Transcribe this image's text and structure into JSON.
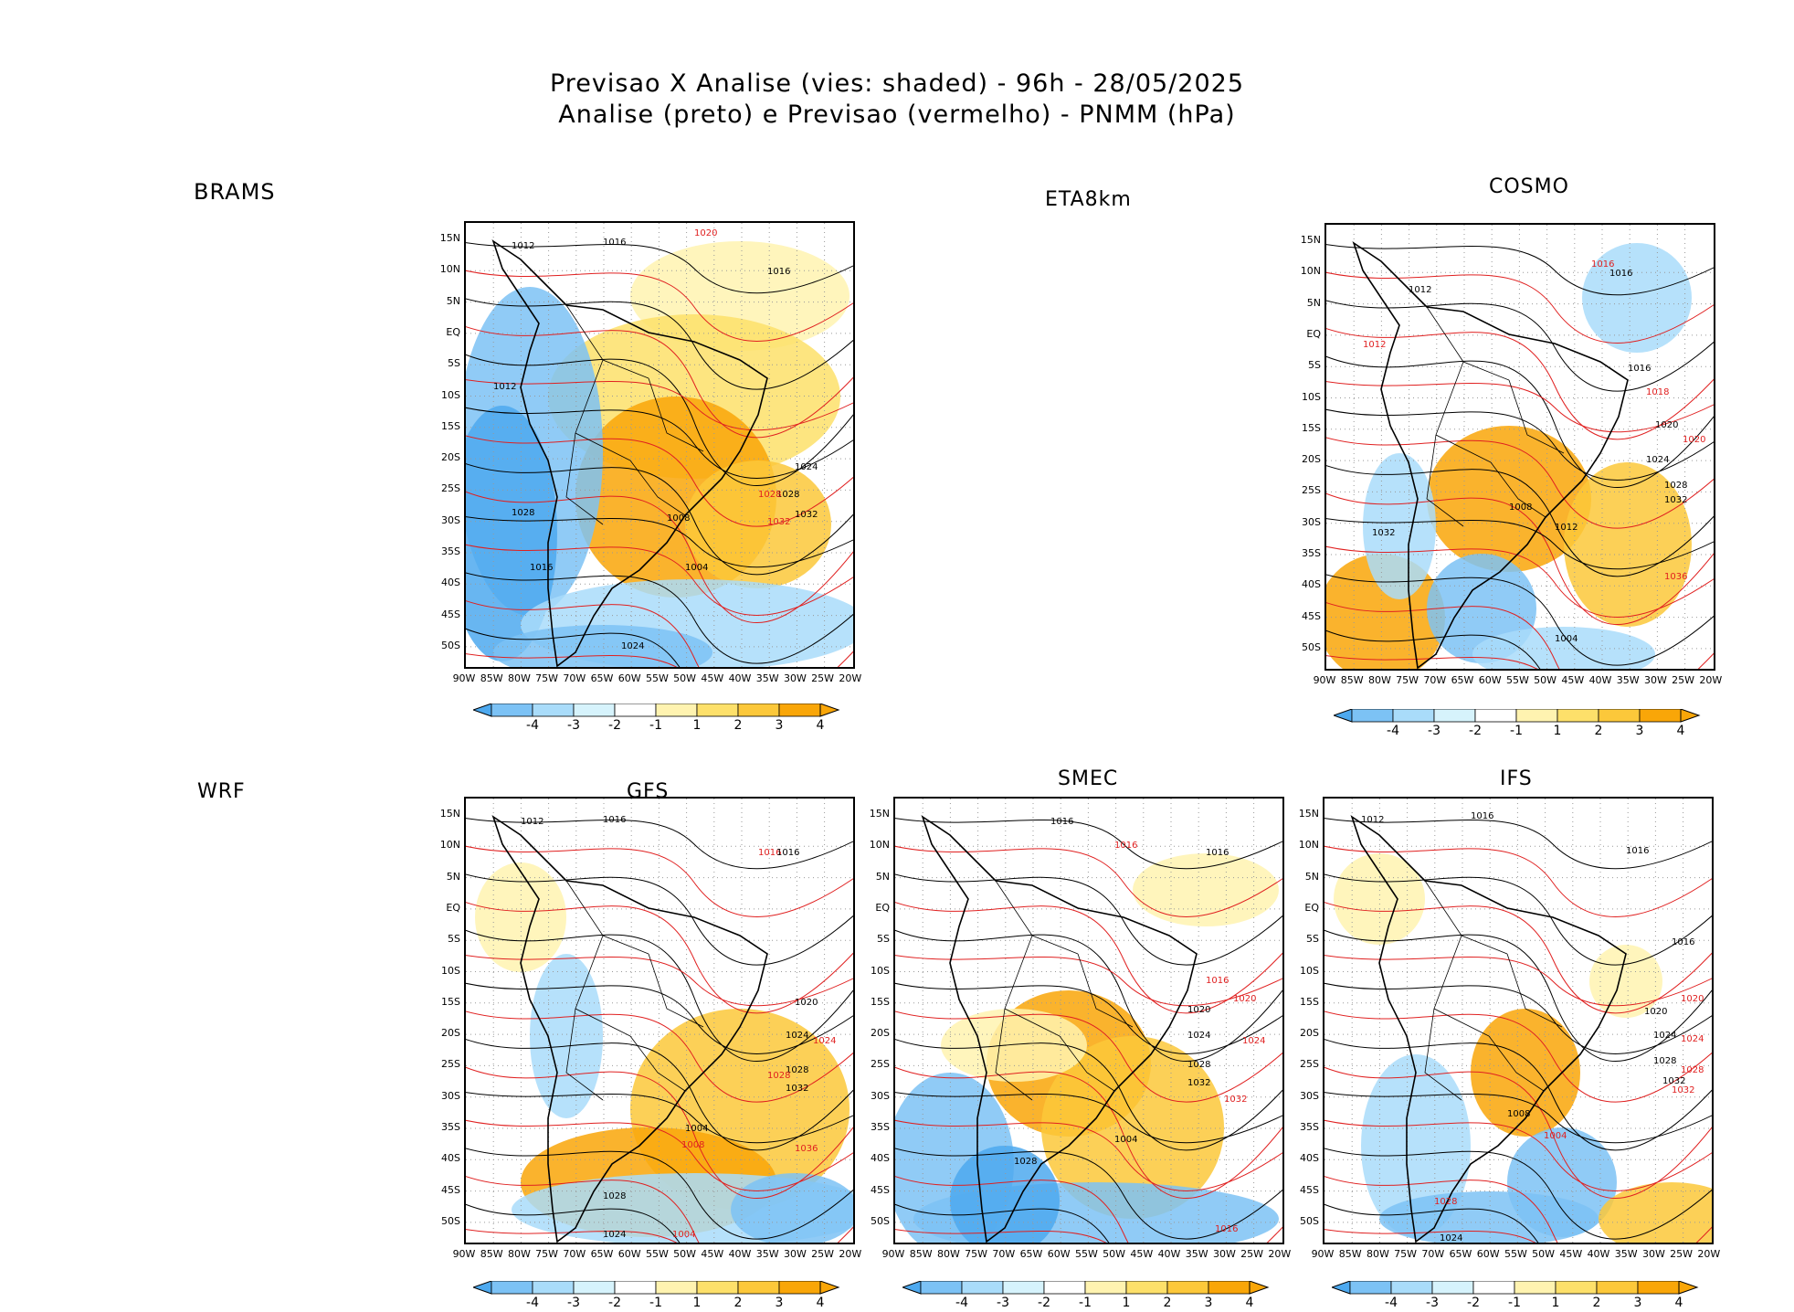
{
  "title": {
    "line1": "Previsao X Analise (vies: shaded) - 96h - 28/05/2025",
    "line2": "Analise (preto) e Previsao (vermelho) - PNMM (hPa)"
  },
  "model_labels": {
    "brams": "BRAMS",
    "eta": "ETA8km",
    "cosmo": "COSMO",
    "wrf": "WRF",
    "gfs": "GFS",
    "smec": "SMEC",
    "ifs": "IFS"
  },
  "lat_ticks": [
    "15N",
    "10N",
    "5N",
    "EQ",
    "5S",
    "10S",
    "15S",
    "20S",
    "25S",
    "30S",
    "35S",
    "40S",
    "45S",
    "50S"
  ],
  "lon_ticks": [
    "90W",
    "85W",
    "80W",
    "75W",
    "70W",
    "65W",
    "60W",
    "55W",
    "50W",
    "45W",
    "40W",
    "35W",
    "30W",
    "25W",
    "20W"
  ],
  "colorbar": {
    "labels": [
      "-4",
      "-3",
      "-2",
      "-1",
      "1",
      "2",
      "3",
      "4"
    ],
    "colors": [
      "#4da9ef",
      "#7cc2f5",
      "#a9dcfa",
      "#d6f3fc",
      "#ffffff",
      "#fff3b0",
      "#fde06a",
      "#fcc83a",
      "#f9a608"
    ]
  },
  "colors": {
    "analysis": "#000000",
    "forecast": "#e02020"
  },
  "panels": [
    {
      "id": "brams",
      "isobars": [
        {
          "text": "1012",
          "t": "a"
        },
        {
          "text": "1016",
          "t": "a"
        },
        {
          "text": "1020",
          "t": "f"
        },
        {
          "text": "1016",
          "t": "a"
        },
        {
          "text": "1012",
          "t": "a"
        },
        {
          "text": "1016",
          "t": "a"
        },
        {
          "text": "1024",
          "t": "a"
        },
        {
          "text": "1028",
          "t": "a"
        },
        {
          "text": "1032",
          "t": "a"
        },
        {
          "text": "1008",
          "t": "a"
        },
        {
          "text": "1004",
          "t": "a"
        },
        {
          "text": "1028",
          "t": "a"
        },
        {
          "text": "1032",
          "t": "f"
        },
        {
          "text": "1028",
          "t": "f"
        },
        {
          "text": "1024",
          "t": "a"
        }
      ]
    },
    {
      "id": "cosmo",
      "isobars": [
        {
          "text": "1016",
          "t": "f"
        },
        {
          "text": "1016",
          "t": "a"
        },
        {
          "text": "1012",
          "t": "a"
        },
        {
          "text": "1012",
          "t": "f"
        },
        {
          "text": "1016",
          "t": "a"
        },
        {
          "text": "1018",
          "t": "f"
        },
        {
          "text": "1020",
          "t": "a"
        },
        {
          "text": "1020",
          "t": "f"
        },
        {
          "text": "1024",
          "t": "a"
        },
        {
          "text": "1028",
          "t": "a"
        },
        {
          "text": "1032",
          "t": "a"
        },
        {
          "text": "1032",
          "t": "a"
        },
        {
          "text": "1008",
          "t": "a"
        },
        {
          "text": "1012",
          "t": "a"
        },
        {
          "text": "1036",
          "t": "f"
        },
        {
          "text": "1004",
          "t": "a"
        }
      ]
    },
    {
      "id": "gfs",
      "isobars": [
        {
          "text": "1012",
          "t": "a"
        },
        {
          "text": "1016",
          "t": "a"
        },
        {
          "text": "1016",
          "t": "f"
        },
        {
          "text": "1016",
          "t": "a"
        },
        {
          "text": "1020",
          "t": "a"
        },
        {
          "text": "1024",
          "t": "a"
        },
        {
          "text": "1024",
          "t": "f"
        },
        {
          "text": "1028",
          "t": "a"
        },
        {
          "text": "1032",
          "t": "a"
        },
        {
          "text": "1028",
          "t": "f"
        },
        {
          "text": "1036",
          "t": "f"
        },
        {
          "text": "1004",
          "t": "a"
        },
        {
          "text": "1008",
          "t": "f"
        },
        {
          "text": "1028",
          "t": "a"
        },
        {
          "text": "1024",
          "t": "a"
        },
        {
          "text": "1004",
          "t": "f"
        }
      ]
    },
    {
      "id": "smec",
      "isobars": [
        {
          "text": "1016",
          "t": "a"
        },
        {
          "text": "1016",
          "t": "f"
        },
        {
          "text": "1016",
          "t": "a"
        },
        {
          "text": "1016",
          "t": "f"
        },
        {
          "text": "1020",
          "t": "f"
        },
        {
          "text": "1020",
          "t": "a"
        },
        {
          "text": "1024",
          "t": "a"
        },
        {
          "text": "1024",
          "t": "f"
        },
        {
          "text": "1028",
          "t": "a"
        },
        {
          "text": "1032",
          "t": "a"
        },
        {
          "text": "1032",
          "t": "f"
        },
        {
          "text": "1004",
          "t": "a"
        },
        {
          "text": "1028",
          "t": "a"
        },
        {
          "text": "1016",
          "t": "f"
        }
      ]
    },
    {
      "id": "ifs",
      "isobars": [
        {
          "text": "1012",
          "t": "a"
        },
        {
          "text": "1016",
          "t": "a"
        },
        {
          "text": "1016",
          "t": "a"
        },
        {
          "text": "1016",
          "t": "a"
        },
        {
          "text": "1020",
          "t": "a"
        },
        {
          "text": "1020",
          "t": "f"
        },
        {
          "text": "1024",
          "t": "a"
        },
        {
          "text": "1024",
          "t": "f"
        },
        {
          "text": "1028",
          "t": "a"
        },
        {
          "text": "1032",
          "t": "a"
        },
        {
          "text": "1028",
          "t": "f"
        },
        {
          "text": "1032",
          "t": "f"
        },
        {
          "text": "1008",
          "t": "a"
        },
        {
          "text": "1004",
          "t": "f"
        },
        {
          "text": "1028",
          "t": "f"
        },
        {
          "text": "1024",
          "t": "a"
        }
      ]
    }
  ]
}
